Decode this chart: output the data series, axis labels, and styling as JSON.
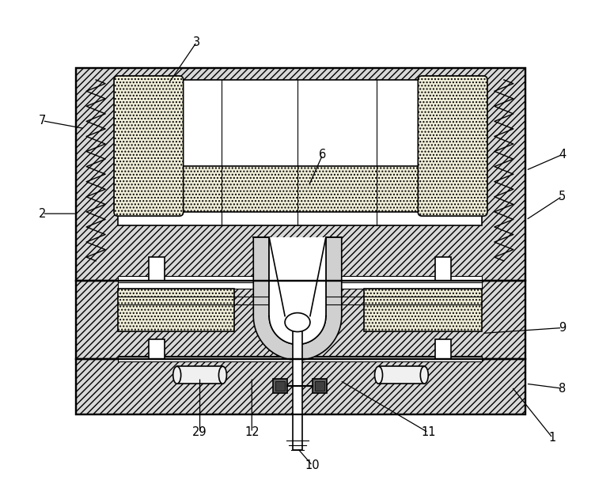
{
  "bg_color": "#ffffff",
  "line_color": "#000000",
  "hatch_fill": "#d8d8d8",
  "dot_fill": "#f0eed8",
  "figsize": [
    7.52,
    6.12
  ],
  "dpi": 100,
  "labels_data": [
    [
      "1",
      700,
      555,
      648,
      490
    ],
    [
      "2",
      52,
      270,
      96,
      270
    ],
    [
      "3",
      248,
      52,
      212,
      105
    ],
    [
      "4",
      712,
      195,
      666,
      215
    ],
    [
      "5",
      712,
      248,
      666,
      278
    ],
    [
      "6",
      408,
      195,
      390,
      235
    ],
    [
      "7",
      52,
      152,
      106,
      162
    ],
    [
      "8",
      712,
      492,
      666,
      486
    ],
    [
      "9",
      712,
      415,
      610,
      422
    ],
    [
      "10",
      395,
      590,
      376,
      568
    ],
    [
      "11",
      542,
      548,
      430,
      482
    ],
    [
      "12",
      318,
      548,
      318,
      478
    ],
    [
      "29",
      252,
      548,
      252,
      478
    ]
  ]
}
